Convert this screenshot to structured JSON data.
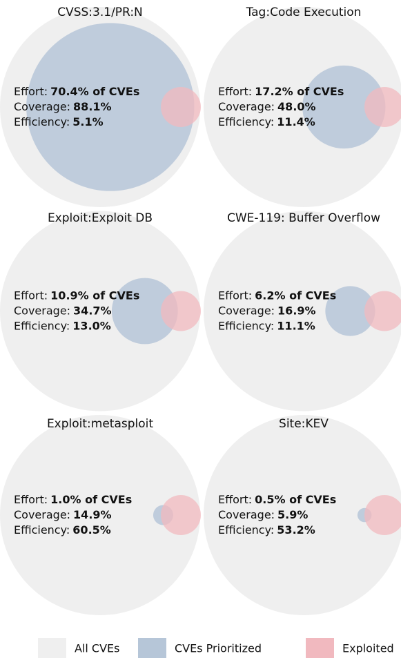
{
  "chart_data": {
    "type": "venn",
    "metric_labels": [
      "Effort:",
      "Coverage:",
      "Efficiency:"
    ],
    "panels": [
      {
        "title": "CVSS:3.1/PR:N",
        "effort": 70.4,
        "effort_label": "70.4% of CVEs",
        "coverage": 88.1,
        "coverage_label": "88.1%",
        "efficiency_label": "5.1%"
      },
      {
        "title": "Tag:Code Execution",
        "effort": 17.2,
        "effort_label": "17.2% of CVEs",
        "coverage": 48.0,
        "coverage_label": "48.0%",
        "efficiency_label": "11.4%"
      },
      {
        "title": "Exploit:Exploit DB",
        "effort": 10.9,
        "effort_label": "10.9% of CVEs",
        "coverage": 34.7,
        "coverage_label": "34.7%",
        "efficiency_label": "13.0%"
      },
      {
        "title": "CWE-119: Buffer Overflow",
        "effort": 6.2,
        "effort_label": "6.2% of CVEs",
        "coverage": 16.9,
        "coverage_label": "16.9%",
        "efficiency_label": "11.1%"
      },
      {
        "title": "Exploit:metasploit",
        "effort": 1.0,
        "effort_label": "1.0% of CVEs",
        "coverage": 14.9,
        "coverage_label": "14.9%",
        "efficiency_label": "60.5%"
      },
      {
        "title": "Site:KEV",
        "effort": 0.5,
        "effort_label": "0.5% of CVEs",
        "coverage": 5.9,
        "coverage_label": "5.9%",
        "efficiency_label": "53.2%"
      }
    ],
    "series": [
      {
        "name": "All CVEs",
        "color": "#efefef"
      },
      {
        "name": "CVEs Prioritized",
        "color": "#b6c6d8"
      },
      {
        "name": "Exploited",
        "color": "#f1b9bf"
      }
    ]
  }
}
